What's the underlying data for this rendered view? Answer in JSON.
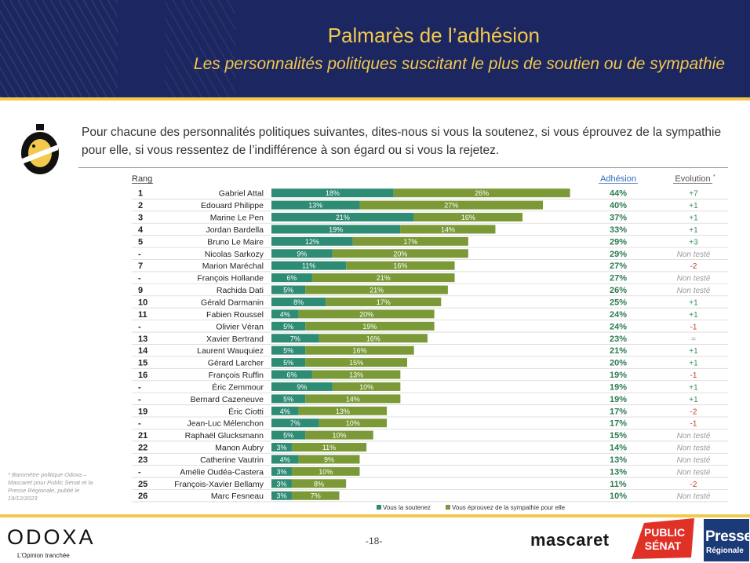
{
  "header": {
    "title": "Palmarès de l’adhésion",
    "subtitle": "Les personnalités politiques suscitant le plus de soutien ou de sympathie"
  },
  "question": "Pour chacune des personnalités politiques suivantes, dites-nous si vous la soutenez, si vous éprouvez de la sympathie pour elle, si vous ressentez de l’indifférence à son égard ou si vous la rejetez.",
  "footnote": "* Baromètre politique Odoxa – Mascaret pour Public Sénat et la Presse Régionale, publié le 19/12/2023",
  "page_number": "-18-",
  "logos": {
    "odoxa": "ODOXA",
    "odoxa_tagline": "L’Opinion tranchée",
    "mascaret": "mascaret",
    "public_senat": [
      "PUBLIC",
      "SÉNAT"
    ],
    "presse_regionale": [
      "Presse",
      "Régionale"
    ]
  },
  "colors": {
    "header_bg": "#1c2660",
    "accent_yellow": "#f2c94c",
    "soutien": "#2e8b74",
    "sympathie": "#7b9a37",
    "adhesion_text": "#2b7d4e",
    "evolution_pos": "#3a8a55",
    "evolution_neg": "#c0392b",
    "non_teste": "#9a9a9a"
  },
  "chart_data": {
    "type": "bar",
    "orientation": "horizontal",
    "stacked": true,
    "columns": {
      "rank": "Rang",
      "adhesion": "Adhésion",
      "evolution": "Evolution",
      "evolution_mark": "*"
    },
    "categories": [
      "Gabriel Attal",
      "Edouard Philippe",
      "Marine Le Pen",
      "Jordan Bardella",
      "Bruno Le Maire",
      "Nicolas Sarkozy",
      "Marion Maréchal",
      "François Hollande",
      "Rachida Dati",
      "Gérald Darmanin",
      "Fabien Roussel",
      "Olivier Véran",
      "Xavier Bertrand",
      "Laurent Wauquiez",
      "Gérard Larcher",
      "François Ruffin",
      "Éric Zemmour",
      "Bernard Cazeneuve",
      "Éric Ciotti",
      "Jean-Luc Mélenchon",
      "Raphaël Glucksmann",
      "Manon Aubry",
      "Catherine Vautrin",
      "Amélie Oudéa-Castera",
      "François-Xavier Bellamy",
      "Marc Fesneau"
    ],
    "ranks": [
      "1",
      "2",
      "3",
      "4",
      "5",
      "-",
      "7",
      "-",
      "9",
      "10",
      "11",
      "-",
      "13",
      "14",
      "15",
      "16",
      "-",
      "-",
      "19",
      "-",
      "21",
      "22",
      "23",
      "-",
      "25",
      "26"
    ],
    "series": [
      {
        "name": "Vous la soutenez",
        "values": [
          18,
          13,
          21,
          19,
          12,
          9,
          11,
          6,
          5,
          8,
          4,
          5,
          7,
          5,
          5,
          6,
          9,
          5,
          4,
          7,
          5,
          3,
          4,
          3,
          3,
          3
        ]
      },
      {
        "name": "Vous éprouvez de la sympathie pour elle",
        "values": [
          26,
          27,
          16,
          14,
          17,
          20,
          16,
          21,
          21,
          17,
          20,
          19,
          16,
          16,
          15,
          13,
          10,
          14,
          13,
          10,
          10,
          11,
          9,
          10,
          8,
          7
        ]
      }
    ],
    "adhesion": [
      "44%",
      "40%",
      "37%",
      "33%",
      "29%",
      "29%",
      "27%",
      "27%",
      "26%",
      "25%",
      "24%",
      "24%",
      "23%",
      "21%",
      "20%",
      "19%",
      "19%",
      "19%",
      "17%",
      "17%",
      "15%",
      "14%",
      "13%",
      "13%",
      "11%",
      "10%"
    ],
    "evolution": [
      "+7",
      "+1",
      "+1",
      "+1",
      "+3",
      "Non testé",
      "-2",
      "Non testé",
      "Non testé",
      "+1",
      "+1",
      "-1",
      "=",
      "+1",
      "+1",
      "-1",
      "+1",
      "+1",
      "-2",
      "-1",
      "Non testé",
      "Non testé",
      "Non testé",
      "Non testé",
      "-2",
      "Non testé"
    ],
    "legend_position": "bottom"
  }
}
